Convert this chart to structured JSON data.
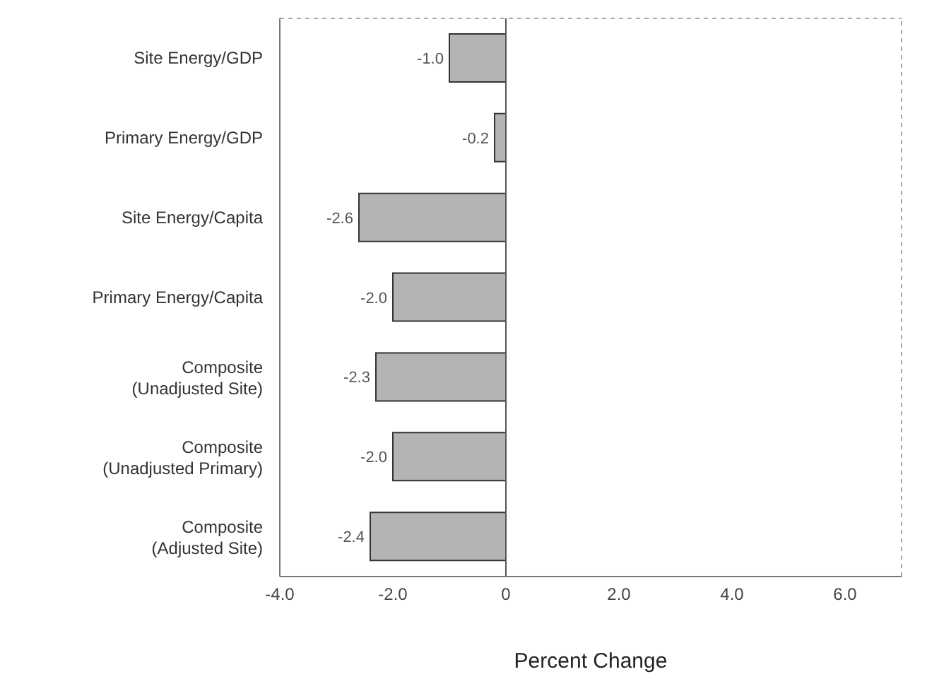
{
  "chart_data": {
    "type": "bar",
    "orientation": "horizontal",
    "xlabel": "Percent Change",
    "categories": [
      "Site Energy/GDP",
      "Primary Energy/GDP",
      "Site Energy/Capita",
      "Primary Energy/Capita",
      "Composite (Unadjusted Site)",
      "Composite (Unadjusted Primary)",
      "Composite (Adjusted Site)"
    ],
    "values": [
      -1.0,
      -0.2,
      -2.6,
      -2.0,
      -2.3,
      -2.0,
      -2.4
    ],
    "value_labels": [
      "-1.0",
      "-0.2",
      "-2.6",
      "-2.0",
      "-2.3",
      "-2.0",
      "-2.4"
    ],
    "color": "#b4b4b4",
    "xlim": [
      -4,
      7
    ],
    "xticks": [
      {
        "value": -4,
        "label": "-4.0"
      },
      {
        "value": -2,
        "label": "-2.0"
      },
      0,
      {
        "value": 2,
        "label": "2.0"
      },
      {
        "value": 4,
        "label": "4.0"
      },
      {
        "value": 6,
        "label": "6.0"
      }
    ]
  }
}
